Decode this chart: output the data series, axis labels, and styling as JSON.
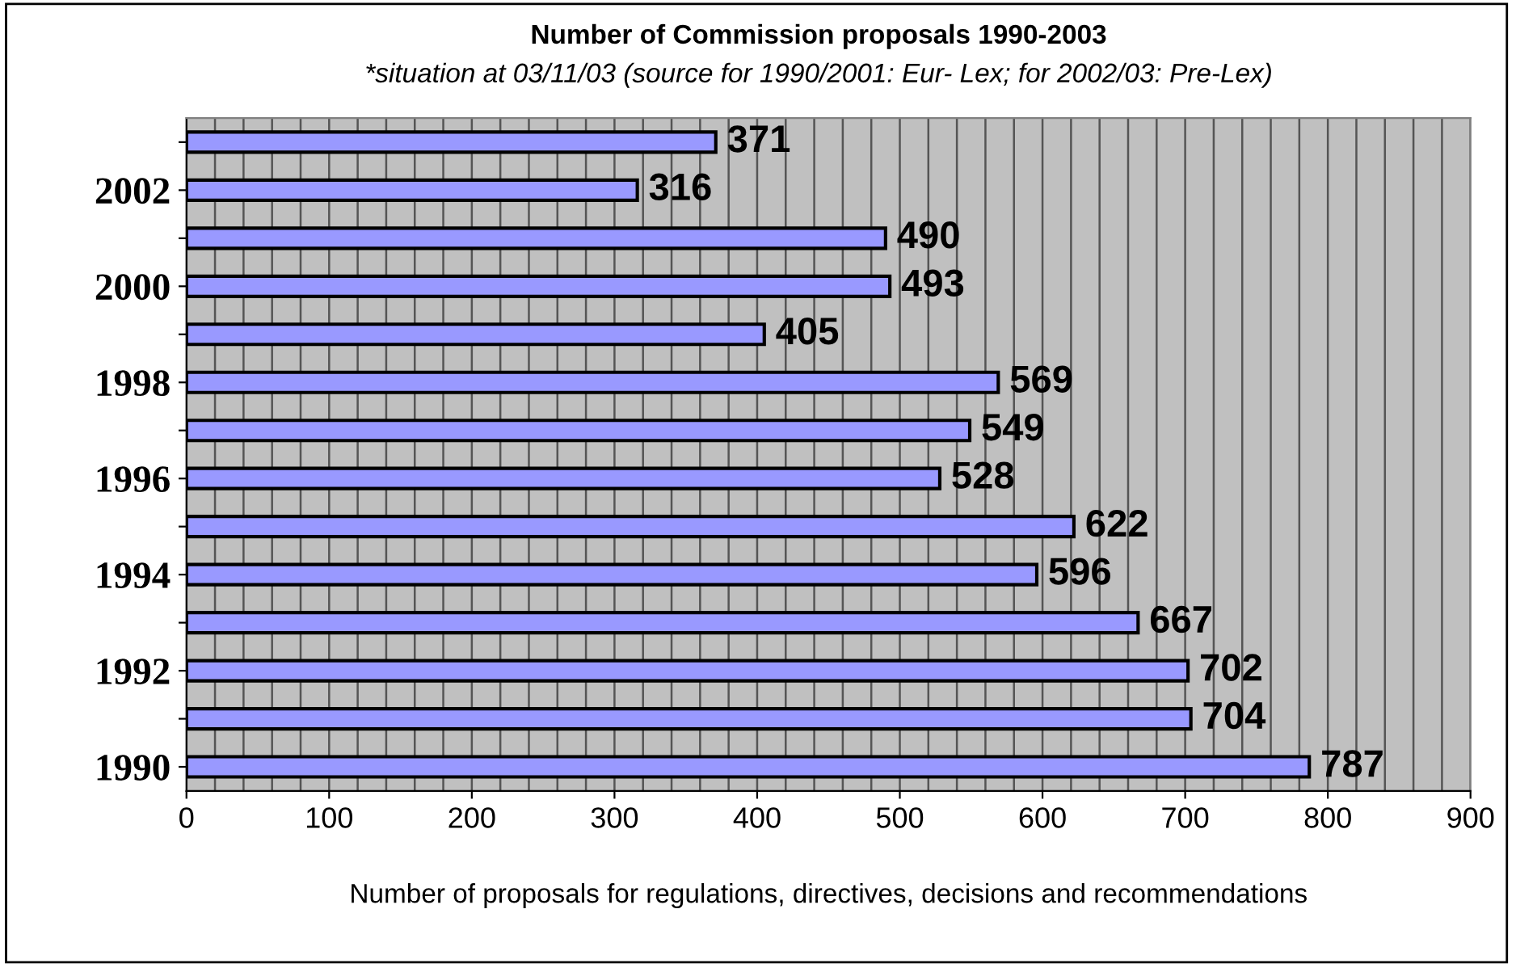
{
  "chart_data": {
    "type": "bar",
    "orientation": "horizontal",
    "title": "Number of Commission proposals 1990-2003",
    "subtitle": "*situation at 03/11/03 (source for 1990/2001: Eur- Lex; for 2002/03: Pre-Lex)",
    "xlabel": "Number of proposals for regulations, directives, decisions and recommendations",
    "categories": [
      null,
      "2002",
      null,
      "2000",
      null,
      "1998",
      null,
      "1996",
      null,
      "1994",
      null,
      "1992",
      null,
      "1990"
    ],
    "values": [
      371,
      316,
      490,
      493,
      405,
      569,
      549,
      528,
      622,
      596,
      667,
      702,
      704,
      787
    ],
    "color": "#9999ff",
    "data_labels": true,
    "grid": "x",
    "legend": false,
    "xlim": [
      0,
      900
    ],
    "xticks": [
      0,
      {
        "value": 20,
        "label": null
      },
      {
        "value": 40,
        "label": null
      },
      {
        "value": 60,
        "label": null
      },
      {
        "value": 80,
        "label": null
      },
      100,
      {
        "value": 120,
        "label": null
      },
      {
        "value": 140,
        "label": null
      },
      {
        "value": 160,
        "label": null
      },
      {
        "value": 180,
        "label": null
      },
      200,
      {
        "value": 220,
        "label": null
      },
      {
        "value": 240,
        "label": null
      },
      {
        "value": 260,
        "label": null
      },
      {
        "value": 280,
        "label": null
      },
      300,
      {
        "value": 320,
        "label": null
      },
      {
        "value": 340,
        "label": null
      },
      {
        "value": 360,
        "label": null
      },
      {
        "value": 380,
        "label": null
      },
      400,
      {
        "value": 420,
        "label": null
      },
      {
        "value": 440,
        "label": null
      },
      {
        "value": 460,
        "label": null
      },
      {
        "value": 480,
        "label": null
      },
      500,
      {
        "value": 520,
        "label": null
      },
      {
        "value": 540,
        "label": null
      },
      {
        "value": 560,
        "label": null
      },
      {
        "value": 580,
        "label": null
      },
      600,
      {
        "value": 620,
        "label": null
      },
      {
        "value": 640,
        "label": null
      },
      {
        "value": 660,
        "label": null
      },
      {
        "value": 680,
        "label": null
      },
      700,
      {
        "value": 720,
        "label": null
      },
      {
        "value": 740,
        "label": null
      },
      {
        "value": 760,
        "label": null
      },
      {
        "value": 780,
        "label": null
      },
      800,
      {
        "value": 820,
        "label": null
      },
      {
        "value": 840,
        "label": null
      },
      {
        "value": 860,
        "label": null
      },
      {
        "value": 880,
        "label": null
      },
      900
    ]
  }
}
